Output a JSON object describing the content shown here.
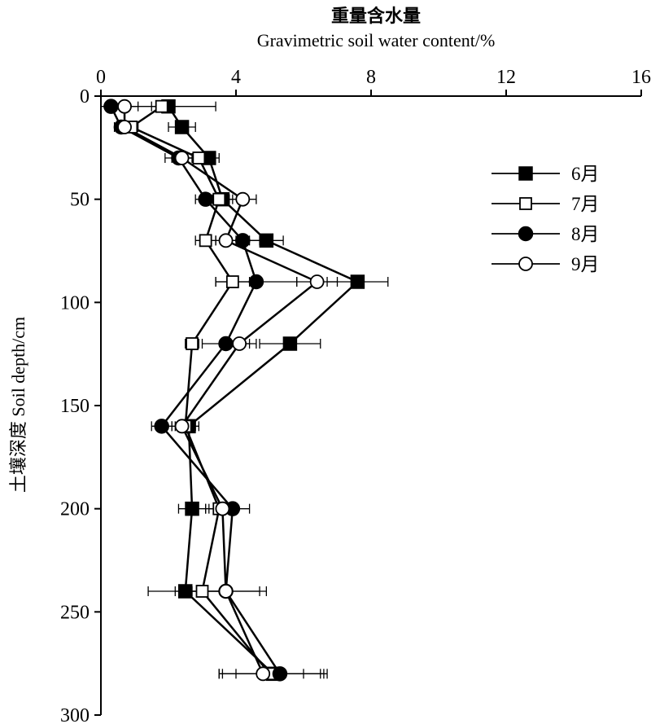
{
  "chart_data": {
    "type": "scatter",
    "title_cn": "重量含水量",
    "xlabel": "Gravimetric soil water content/%",
    "ylabel": "土壤深度 Soil depth/cm",
    "x_ticks": [
      "0",
      "4",
      "8",
      "12",
      "16"
    ],
    "y_ticks": [
      "0",
      "50",
      "100",
      "150",
      "200",
      "250",
      "300"
    ],
    "xlim": [
      0,
      16
    ],
    "ylim": [
      0,
      300
    ],
    "y_inverted": true,
    "x_axis_position": "top",
    "legend_position": "right-upper",
    "grid": false,
    "series": [
      {
        "name": "6月",
        "marker": "filled-square",
        "points": [
          {
            "depth": 5,
            "x": 2.0,
            "err": 1.4
          },
          {
            "depth": 15,
            "x": 2.4,
            "err": 0.4
          },
          {
            "depth": 30,
            "x": 3.2,
            "err": 0.3
          },
          {
            "depth": 50,
            "x": 3.6,
            "err": 0.3
          },
          {
            "depth": 70,
            "x": 4.9,
            "err": 0.5
          },
          {
            "depth": 90,
            "x": 7.6,
            "err": 0.9
          },
          {
            "depth": 120,
            "x": 5.6,
            "err": 0.9
          },
          {
            "depth": 160,
            "x": 2.6,
            "err": 0.3
          },
          {
            "depth": 200,
            "x": 2.7,
            "err": 0.4
          },
          {
            "depth": 240,
            "x": 2.5,
            "err": 1.1
          },
          {
            "depth": 280,
            "x": 5.1,
            "err": 1.6
          }
        ]
      },
      {
        "name": "7月",
        "marker": "open-square",
        "points": [
          {
            "depth": 5,
            "x": 1.8,
            "err": 0.3
          },
          {
            "depth": 15,
            "x": 0.9,
            "err": 0.2
          },
          {
            "depth": 30,
            "x": 2.9,
            "err": 0.4
          },
          {
            "depth": 50,
            "x": 3.5,
            "err": 0.3
          },
          {
            "depth": 70,
            "x": 3.1,
            "err": 0.3
          },
          {
            "depth": 90,
            "x": 3.9,
            "err": 0.5
          },
          {
            "depth": 120,
            "x": 2.7,
            "err": 0.2
          },
          {
            "depth": 160,
            "x": 2.5,
            "err": 0.3
          },
          {
            "depth": 200,
            "x": 3.5,
            "err": 0.4
          },
          {
            "depth": 240,
            "x": 3.0,
            "err": 0.8
          },
          {
            "depth": 280,
            "x": 5.0,
            "err": 1.5
          }
        ]
      },
      {
        "name": "8月",
        "marker": "filled-circle",
        "points": [
          {
            "depth": 5,
            "x": 0.3,
            "err": 0.3
          },
          {
            "depth": 15,
            "x": 0.6,
            "err": 0.2
          },
          {
            "depth": 30,
            "x": 2.3,
            "err": 0.4
          },
          {
            "depth": 50,
            "x": 3.1,
            "err": 0.3
          },
          {
            "depth": 70,
            "x": 4.2,
            "err": 0.5
          },
          {
            "depth": 90,
            "x": 4.6,
            "err": 1.2
          },
          {
            "depth": 120,
            "x": 3.7,
            "err": 0.7
          },
          {
            "depth": 160,
            "x": 1.8,
            "err": 0.3
          },
          {
            "depth": 200,
            "x": 3.9,
            "err": 0.5
          },
          {
            "depth": 240,
            "x": 3.7,
            "err": 1.0
          },
          {
            "depth": 280,
            "x": 5.3,
            "err": 1.3
          }
        ]
      },
      {
        "name": "9月",
        "marker": "open-circle",
        "points": [
          {
            "depth": 5,
            "x": 0.7,
            "err": 0.4
          },
          {
            "depth": 15,
            "x": 0.7,
            "err": 0.2
          },
          {
            "depth": 30,
            "x": 2.4,
            "err": 0.3
          },
          {
            "depth": 50,
            "x": 4.2,
            "err": 0.4
          },
          {
            "depth": 70,
            "x": 3.7,
            "err": 0.3
          },
          {
            "depth": 90,
            "x": 6.4,
            "err": 0.6
          },
          {
            "depth": 120,
            "x": 4.1,
            "err": 0.5
          },
          {
            "depth": 160,
            "x": 2.4,
            "err": 0.3
          },
          {
            "depth": 200,
            "x": 3.6,
            "err": 0.4
          },
          {
            "depth": 240,
            "x": 3.7,
            "err": 1.2
          },
          {
            "depth": 280,
            "x": 4.8,
            "err": 1.2
          }
        ]
      }
    ]
  }
}
